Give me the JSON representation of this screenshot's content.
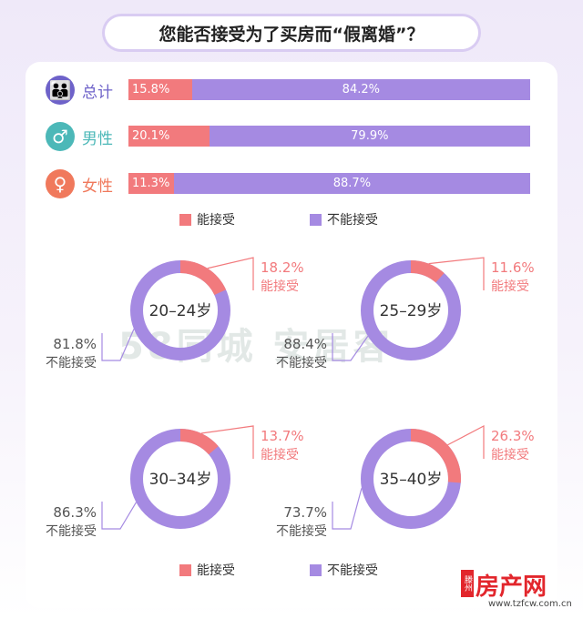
{
  "title": "您能否接受为了买房而“假离婚”？",
  "colors": {
    "accept": "#f27a7d",
    "reject": "#a58ae2",
    "total": "#6e62c9",
    "male": "#4cb8b8",
    "female": "#f0795c"
  },
  "bar_rows": [
    {
      "label": "总计",
      "icon": "people-icon",
      "symbol": "👪",
      "accept": "15.8%",
      "reject": "84.2%"
    },
    {
      "label": "男性",
      "icon": "male-icon",
      "symbol": "♂",
      "accept": "20.1%",
      "reject": "79.9%"
    },
    {
      "label": "女性",
      "icon": "female-icon",
      "symbol": "♀",
      "accept": "11.3%",
      "reject": "88.7%"
    }
  ],
  "legend": {
    "accept": "能接受",
    "reject": "不能接受"
  },
  "donuts": [
    {
      "age": "20–24岁",
      "accept_text": "18.2%",
      "reject_text": "81.8%"
    },
    {
      "age": "25–29岁",
      "accept_text": "11.6%",
      "reject_text": "88.4%"
    },
    {
      "age": "30–34岁",
      "accept_text": "13.7%",
      "reject_text": "86.3%"
    },
    {
      "age": "35–40岁",
      "accept_text": "26.3%",
      "reject_text": "73.7%"
    }
  ],
  "watermark": "58同城 安居客",
  "logo": {
    "brand": "房产网",
    "badge": "滕州",
    "url": "www.tzfcw.com.cn"
  },
  "chart_data": [
    {
      "type": "bar",
      "title": "您能否接受为了买房而“假离婚”？",
      "categories": [
        "总计",
        "男性",
        "女性"
      ],
      "series": [
        {
          "name": "能接受",
          "values": [
            15.8,
            20.1,
            11.3
          ]
        },
        {
          "name": "不能接受",
          "values": [
            84.2,
            79.9,
            88.7
          ]
        }
      ],
      "stacked": true,
      "legend_position": "bottom"
    },
    {
      "type": "pie",
      "categories": [
        "20–24岁",
        "25–29岁",
        "30–34岁",
        "35–40岁"
      ],
      "series": [
        {
          "name": "能接受",
          "values": [
            18.2,
            11.6,
            13.7,
            26.3
          ]
        },
        {
          "name": "不能接受",
          "values": [
            81.8,
            88.4,
            86.3,
            73.7
          ]
        }
      ],
      "legend_position": "bottom"
    }
  ]
}
